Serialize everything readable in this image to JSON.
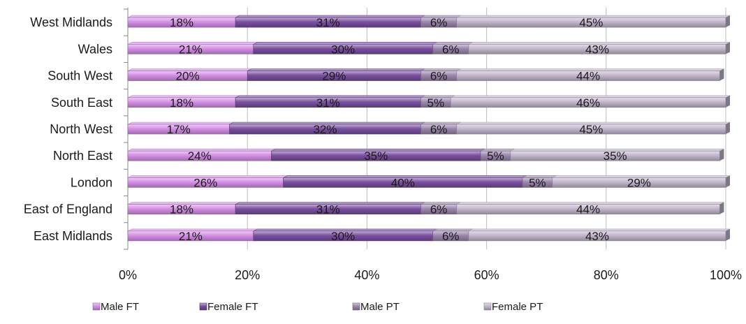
{
  "chart_data": {
    "type": "bar",
    "orientation": "horizontal",
    "stacked": "percent",
    "categories": [
      "West Midlands",
      "Wales",
      "South West",
      "South East",
      "North West",
      "North East",
      "London",
      "East of England",
      "East Midlands"
    ],
    "series": [
      {
        "name": "Male FT",
        "values": [
          18,
          21,
          20,
          18,
          17,
          24,
          26,
          18,
          21
        ],
        "color": "#d58fe6"
      },
      {
        "name": "Female FT",
        "values": [
          31,
          30,
          29,
          31,
          32,
          35,
          40,
          31,
          30
        ],
        "color": "#7a4fa0"
      },
      {
        "name": "Male PT",
        "values": [
          6,
          6,
          6,
          5,
          6,
          5,
          5,
          6,
          6
        ],
        "color": "#9b86ad"
      },
      {
        "name": "Female PT",
        "values": [
          45,
          43,
          44,
          46,
          45,
          35,
          29,
          44,
          43
        ],
        "color": "#c2b6cc"
      }
    ],
    "data_labels": [
      [
        "18%",
        "21%",
        "20%",
        "18%",
        "17%",
        "24%",
        "26%",
        "18%",
        "21%"
      ],
      [
        "31%",
        "30%",
        "29%",
        "31%",
        "32%",
        "35%",
        "40%",
        "31%",
        "30%"
      ],
      [
        "6%",
        "6%",
        "6%",
        "5%",
        "6%",
        "5%",
        "5%",
        "6%",
        "6%"
      ],
      [
        "45%",
        "43%",
        "44%",
        "46%",
        "45%",
        "35%",
        "29%",
        "44%",
        "43%"
      ]
    ],
    "xlim": [
      0,
      100
    ],
    "x_ticks": [
      "0%",
      "20%",
      "40%",
      "60%",
      "80%",
      "100%"
    ],
    "grid": true,
    "legend_position": "bottom"
  }
}
